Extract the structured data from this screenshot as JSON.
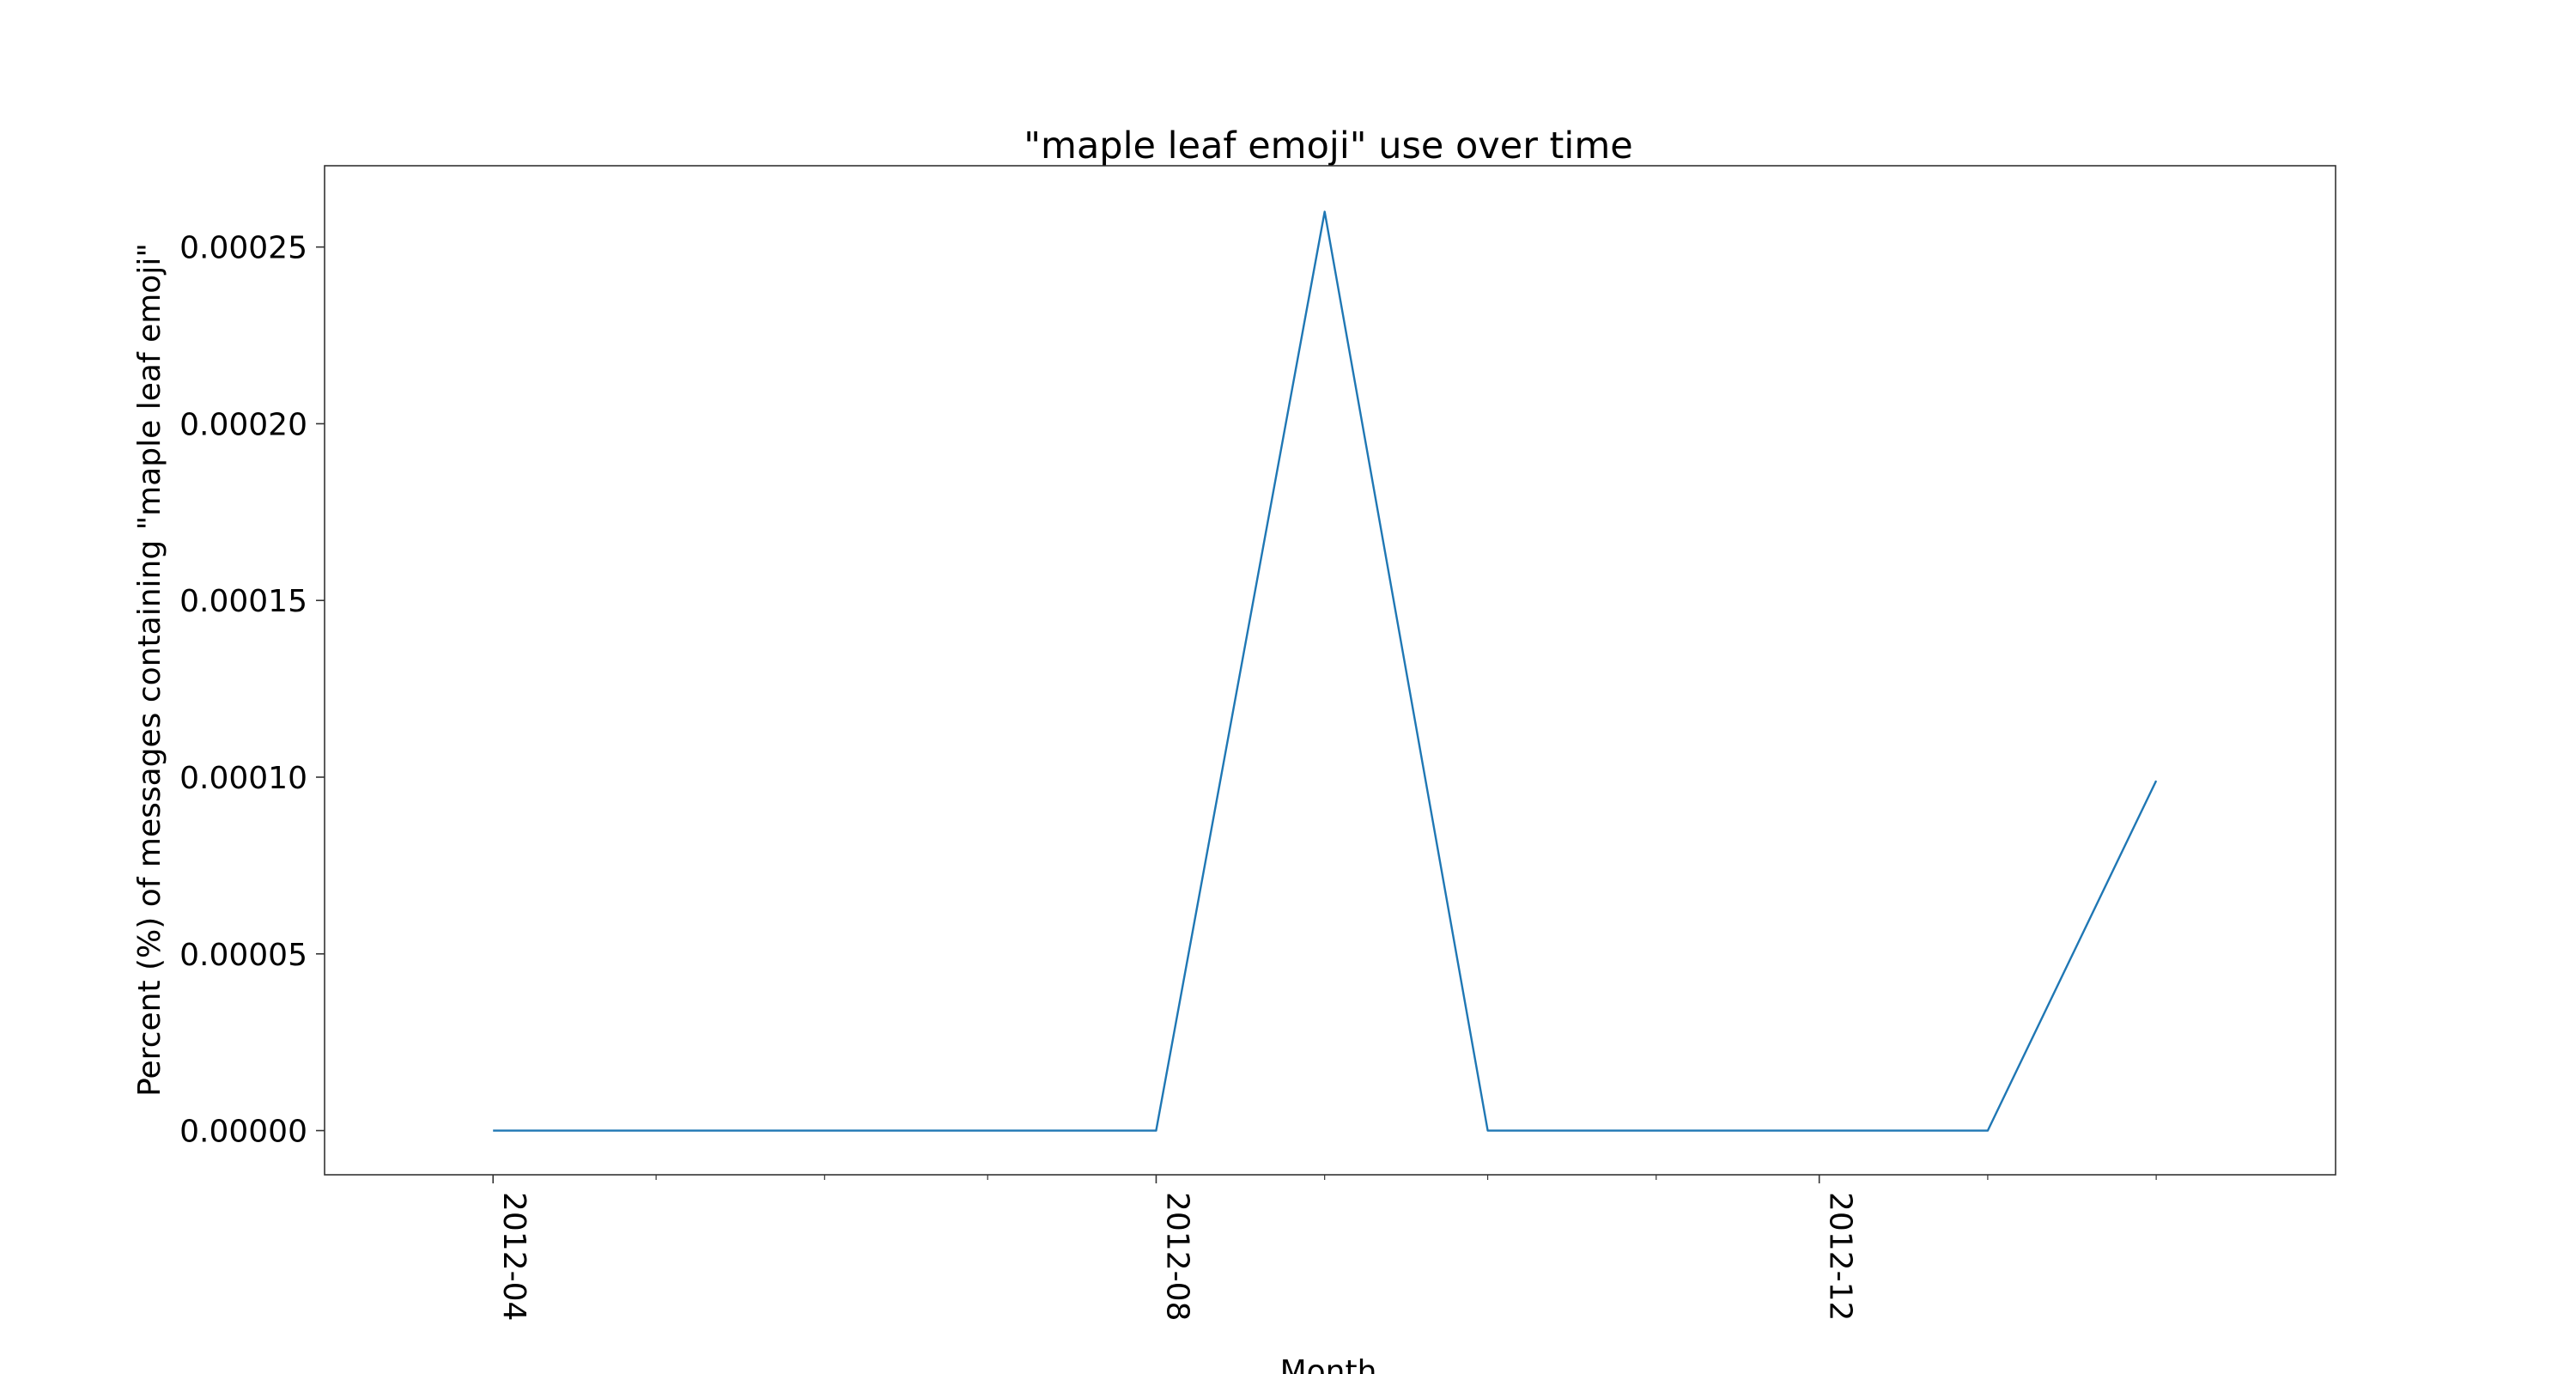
{
  "chart_data": {
    "type": "line",
    "title": "\"maple leaf emoji\" use over time",
    "xlabel": "Month",
    "ylabel": "Percent (%) of messages containing \"maple leaf emoji\"",
    "x": [
      "2012-04",
      "2012-05",
      "2012-06",
      "2012-07",
      "2012-08",
      "2012-09",
      "2012-10",
      "2012-11",
      "2012-12",
      "2013-01",
      "2013-02"
    ],
    "x_tick_labels": [
      "2012-04",
      "2012-08",
      "2012-12"
    ],
    "series": [
      {
        "values": [
          0,
          0,
          0,
          0,
          0,
          0.00026,
          0,
          0,
          0,
          0,
          9.9e-05
        ],
        "color": "#1f77b4"
      }
    ],
    "y_ticks": [
      0,
      5e-05,
      0.0001,
      0.00015,
      0.0002,
      0.00025
    ],
    "y_tick_labels": [
      "0.00000",
      "0.00005",
      "0.00010",
      "0.00015",
      "0.00020",
      "0.00025"
    ],
    "ylim": [
      -1.25e-05,
      0.000273
    ],
    "xlim": [
      "2012-03-01",
      "2013-03-06"
    ],
    "grid": false,
    "legend": "none"
  }
}
